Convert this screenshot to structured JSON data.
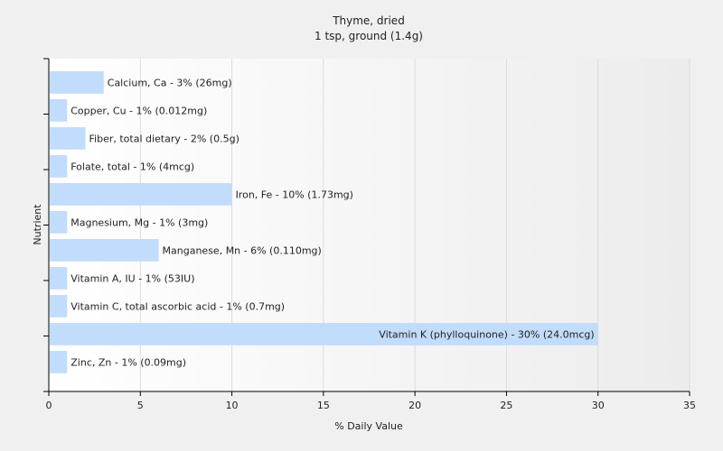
{
  "chart_data": {
    "type": "bar",
    "orientation": "horizontal",
    "title": "Thyme, dried",
    "subtitle": "1 tsp, ground (1.4g)",
    "xlabel": "% Daily Value",
    "ylabel": "Nutrient",
    "xlim": [
      0,
      35
    ],
    "xticks": [
      0,
      5,
      10,
      15,
      20,
      25,
      30,
      35
    ],
    "grid": true,
    "categories": [
      "Calcium, Ca",
      "Copper, Cu",
      "Fiber, total dietary",
      "Folate, total",
      "Iron, Fe",
      "Magnesium, Mg",
      "Manganese, Mn",
      "Vitamin A, IU",
      "Vitamin C, total ascorbic acid",
      "Vitamin K (phylloquinone)",
      "Zinc, Zn"
    ],
    "values": [
      3,
      1,
      2,
      1,
      10,
      1,
      6,
      1,
      1,
      30,
      1
    ],
    "labels": [
      "Calcium, Ca - 3% (26mg)",
      "Copper, Cu - 1% (0.012mg)",
      "Fiber, total dietary - 2% (0.5g)",
      "Folate, total - 1% (4mcg)",
      "Iron, Fe - 10% (1.73mg)",
      "Magnesium, Mg - 1% (3mg)",
      "Manganese, Mn - 6% (0.110mg)",
      "Vitamin A, IU - 1% (53IU)",
      "Vitamin C, total ascorbic acid - 1% (0.7mg)",
      "Vitamin K (phylloquinone) - 30% (24.0mcg)",
      "Zinc, Zn - 1% (0.09mg)"
    ],
    "colors": {
      "bar": "#c2dcfc",
      "grid": "#dcdcdc",
      "axis": "#000000",
      "plot_bg_from": "#ffffff",
      "plot_bg_to": "#ececec"
    }
  }
}
